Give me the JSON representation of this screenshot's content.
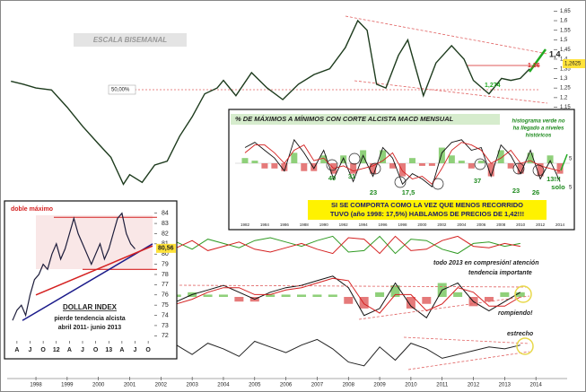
{
  "chart_data": [
    {
      "type": "line",
      "annotations": [
        "ESCALA BISEMANAL",
        "50,00%",
        "1,4",
        "1,36",
        "1,2625",
        "1,274"
      ],
      "x": [
        1997.2,
        1997.6,
        1998.0,
        1998.5,
        1999.0,
        1999.5,
        2000.0,
        2000.4,
        2000.8,
        2001.0,
        2001.4,
        2001.8,
        2002.2,
        2002.6,
        2003.0,
        2003.4,
        2003.8,
        2004.0,
        2004.4,
        2004.9,
        2005.4,
        2005.9,
        2006.4,
        2006.9,
        2007.4,
        2007.9,
        2008.3,
        2008.6,
        2008.9,
        2009.2,
        2009.6,
        2009.9,
        2010.4,
        2010.8,
        2011.3,
        2011.7,
        2012.0,
        2012.5,
        2012.9,
        2013.2,
        2013.5,
        2013.8
      ],
      "values": [
        1.285,
        1.27,
        1.25,
        1.24,
        1.15,
        1.05,
        0.96,
        0.89,
        0.75,
        0.8,
        0.76,
        0.85,
        0.87,
        1.0,
        1.1,
        1.22,
        1.25,
        1.29,
        1.21,
        1.33,
        1.25,
        1.19,
        1.27,
        1.32,
        1.35,
        1.46,
        1.6,
        1.55,
        1.27,
        1.25,
        1.42,
        1.5,
        1.21,
        1.38,
        1.47,
        1.4,
        1.29,
        1.22,
        1.3,
        1.29,
        1.3,
        1.35
      ],
      "color": "#1d3b1d",
      "xlim": [
        1997.1,
        2015
      ],
      "ylim": [
        -0.273,
        1.684
      ],
      "xticks": [
        1998,
        1999,
        2000,
        2001,
        2002,
        2003,
        2004,
        2005,
        2006,
        2007,
        2008,
        2009,
        2010,
        2011,
        2012,
        2013,
        2014
      ],
      "yticks": [
        {
          "value": 1.65,
          "label": "1,65"
        },
        {
          "value": 1.6,
          "label": "1,6"
        },
        {
          "value": 1.55,
          "label": "1,55"
        },
        {
          "value": 1.5,
          "label": "1,5"
        },
        {
          "value": 1.45,
          "label": "1,45"
        },
        {
          "value": 1.4,
          "label": "1,4"
        },
        {
          "value": 1.35,
          "label": "1,35"
        },
        {
          "value": 1.3,
          "label": "1,3"
        },
        {
          "value": 1.25,
          "label": "1,25"
        },
        {
          "value": 1.2,
          "label": "1,2"
        },
        {
          "value": 1.15,
          "label": "1,15"
        }
      ]
    },
    {
      "type": "line",
      "annotations": [
        "todo 2013 en compresión! atención",
        "tendencia importante"
      ],
      "x": [
        2002.5,
        2003,
        2003.5,
        2004,
        2004.5,
        2005,
        2005.5,
        2006,
        2006.5,
        2007,
        2007.5,
        2008,
        2008.5,
        2009,
        2009.5,
        2010,
        2010.5,
        2011,
        2011.5,
        2012,
        2012.5,
        2013,
        2013.5
      ],
      "series": [
        {
          "color": "#2f9a22",
          "values": [
            0.2,
            -0.3,
            0.4,
            0.1,
            -0.2,
            0.3,
            0.5,
            0.2,
            -0.1,
            0.3,
            0.6,
            -0.5,
            -0.4,
            0.6,
            -0.6,
            0.4,
            0.3,
            -0.3,
            -0.6,
            0.1,
            0.2,
            -0.1,
            0.1
          ]
        },
        {
          "color": "#d42020",
          "values": [
            -0.2,
            0.3,
            -0.4,
            -0.1,
            0.2,
            -0.3,
            -0.5,
            -0.2,
            0.1,
            -0.3,
            -0.6,
            0.5,
            0.4,
            -0.6,
            0.6,
            -0.4,
            -0.3,
            0.3,
            0.6,
            -0.1,
            -0.2,
            0.1,
            -0.1
          ]
        }
      ],
      "xlim": [
        1997.1,
        2015
      ],
      "ylim": [
        -1,
        1
      ]
    },
    {
      "type": "macd",
      "annotations": [
        "rompiendo!"
      ],
      "x": [
        2002.5,
        2003,
        2003.5,
        2004,
        2004.5,
        2005,
        2005.5,
        2006,
        2006.5,
        2007,
        2007.5,
        2008,
        2008.5,
        2009,
        2009.5,
        2010,
        2010.5,
        2011,
        2011.5,
        2012,
        2012.5,
        2013,
        2013.5
      ],
      "series": [
        {
          "color": "#111111",
          "values": [
            -0.2,
            0.1,
            0.3,
            0.5,
            0.2,
            -0.1,
            0.2,
            0.4,
            0.5,
            0.7,
            0.9,
            0.4,
            -0.8,
            -0.5,
            0.6,
            -0.4,
            -0.9,
            0.3,
            0.6,
            -0.2,
            -0.6,
            -0.2,
            0.2
          ]
        },
        {
          "color": "#d42020",
          "values": [
            -0.3,
            -0.1,
            0.2,
            0.4,
            0.4,
            0.1,
            0.1,
            0.3,
            0.4,
            0.6,
            0.8,
            0.7,
            -0.3,
            -0.7,
            0.1,
            0.1,
            -0.6,
            -0.3,
            0.4,
            0.2,
            -0.4,
            -0.4,
            0.0
          ]
        }
      ],
      "histogram": [
        0.1,
        0.2,
        0.1,
        0.1,
        -0.2,
        -0.2,
        0.1,
        0.1,
        0.1,
        0.1,
        0.1,
        -0.3,
        -0.5,
        0.2,
        0.5,
        -0.5,
        -0.3,
        0.6,
        0.2,
        -0.4,
        -0.2,
        0.2,
        0.2
      ],
      "xlim": [
        1997.1,
        2015
      ],
      "ylim": [
        -1.2,
        1.2
      ]
    },
    {
      "type": "line",
      "annotations": [
        "estrecho"
      ],
      "x": [
        2002.5,
        2003,
        2003.5,
        2004,
        2004.5,
        2005,
        2005.5,
        2006,
        2006.5,
        2007,
        2007.5,
        2008,
        2008.5,
        2009,
        2009.5,
        2010,
        2010.5,
        2011,
        2011.5,
        2012,
        2012.5,
        2013,
        2013.5
      ],
      "series": [
        {
          "color": "#222222",
          "values": [
            0.3,
            -0.2,
            0.4,
            0.1,
            -0.3,
            0.5,
            0.2,
            -0.1,
            0.3,
            0.6,
            0.1,
            -0.6,
            -0.8,
            0.2,
            -0.5,
            0.4,
            0.1,
            -0.4,
            -0.2,
            0.0,
            0.2,
            0.1,
            0.3
          ]
        }
      ],
      "xlim": [
        1997.1,
        2015
      ],
      "ylim": [
        -1,
        1
      ]
    },
    {
      "type": "macd",
      "title": "% DE MÁXIMOS A MÍNIMOS CON CORTE ALCISTA MACD MENSUAL",
      "note": [
        "histograma verde no",
        "ha llegado a niveles",
        "históricos"
      ],
      "callout": [
        "SI SE COMPORTA COMO LA VEZ QUE MENOS RECORRIDO",
        "TUVO (año 1998: 17,5%) HABLAMOS DE PRECIOS DE 1,42!!!"
      ],
      "annotations": [
        "40",
        "31",
        "23",
        "17,5",
        "37",
        "23",
        "26",
        "13!!!",
        "solo"
      ],
      "right_labels": [
        "5",
        "5"
      ],
      "x": [
        1982,
        1983,
        1984,
        1985,
        1986,
        1987,
        1988,
        1989,
        1990,
        1991,
        1992,
        1993,
        1994,
        1995,
        1996,
        1997,
        1998,
        1999,
        2000,
        2001,
        2002,
        2003,
        2004,
        2005,
        2006,
        2007,
        2008,
        2009,
        2010,
        2011,
        2012,
        2013,
        2014
      ],
      "series": [
        {
          "color": "#111111",
          "values": [
            0.6,
            0.8,
            0.5,
            0.2,
            -0.3,
            0.9,
            0.4,
            -0.2,
            0.5,
            -0.6,
            0.2,
            -0.7,
            0.3,
            -0.5,
            0.6,
            0.2,
            -0.8,
            -0.4,
            -0.6,
            -0.9,
            0.4,
            0.8,
            0.9,
            0.5,
            0.6,
            -0.5,
            0.7,
            0.3,
            -0.4,
            0.5,
            -0.6,
            0.1,
            -0.7
          ]
        },
        {
          "color": "#d42020",
          "values": [
            0.4,
            0.7,
            0.7,
            0.4,
            0.0,
            0.5,
            0.7,
            0.1,
            0.2,
            -0.2,
            -0.1,
            -0.3,
            -0.2,
            -0.1,
            0.1,
            0.4,
            -0.3,
            -0.6,
            -0.5,
            -0.8,
            -0.2,
            0.5,
            0.8,
            0.7,
            0.5,
            0.0,
            0.2,
            0.5,
            0.0,
            0.1,
            -0.1,
            -0.2,
            -0.3
          ]
        }
      ],
      "histogram": [
        0.2,
        0.1,
        -0.2,
        -0.2,
        -0.3,
        0.4,
        -0.3,
        -0.3,
        0.3,
        -0.4,
        0.3,
        -0.4,
        0.5,
        -0.4,
        0.5,
        -0.2,
        -0.5,
        0.2,
        -0.1,
        -0.1,
        0.6,
        0.3,
        0.1,
        -0.2,
        0.1,
        -0.5,
        0.5,
        -0.2,
        -0.4,
        0.4,
        -0.5,
        0.3,
        -0.4
      ],
      "xlim": [
        1981,
        2015
      ],
      "ylim": [
        -1.1,
        1.1
      ],
      "xticks": [
        1982,
        1984,
        1986,
        1988,
        1990,
        1992,
        1994,
        1996,
        1998,
        2000,
        2002,
        2004,
        2006,
        2008,
        2010,
        2012,
        2014
      ]
    },
    {
      "type": "line",
      "title": "DOLLAR INDEX",
      "note": [
        "pierde tendencia alcista",
        "abril 2011- junio 2013"
      ],
      "annotations": [
        "doble máximo",
        "80,56"
      ],
      "x": [
        0,
        1,
        2,
        3,
        4,
        5,
        6,
        7,
        8,
        9,
        10,
        11,
        12,
        13,
        14,
        15,
        16,
        17,
        18,
        19,
        20,
        21,
        22,
        23,
        24,
        25,
        26,
        27,
        28
      ],
      "values": [
        73.5,
        74.5,
        75,
        74,
        76,
        77.5,
        78,
        79,
        78.5,
        80,
        81,
        79.5,
        80.5,
        82,
        83.5,
        82,
        81,
        80,
        79,
        80,
        81,
        79.5,
        80.5,
        82,
        83.5,
        84,
        82,
        81,
        80.5
      ],
      "color": "#1d1d3b",
      "xlim": [
        0,
        32
      ],
      "ylim": [
        71.5,
        84.5
      ],
      "yticks": [
        84,
        83,
        82,
        81,
        80,
        79,
        78,
        77,
        76,
        75,
        74,
        73,
        72
      ],
      "xticks": [
        {
          "value": 1,
          "label": "A"
        },
        {
          "value": 4,
          "label": "J"
        },
        {
          "value": 7,
          "label": "O"
        },
        {
          "value": 10,
          "label": "12"
        },
        {
          "value": 13,
          "label": "A"
        },
        {
          "value": 16,
          "label": "J"
        },
        {
          "value": 19,
          "label": "O"
        },
        {
          "value": 22,
          "label": "13"
        },
        {
          "value": 25,
          "label": "A"
        },
        {
          "value": 28,
          "label": "J"
        },
        {
          "value": 31,
          "label": "O"
        }
      ]
    }
  ]
}
